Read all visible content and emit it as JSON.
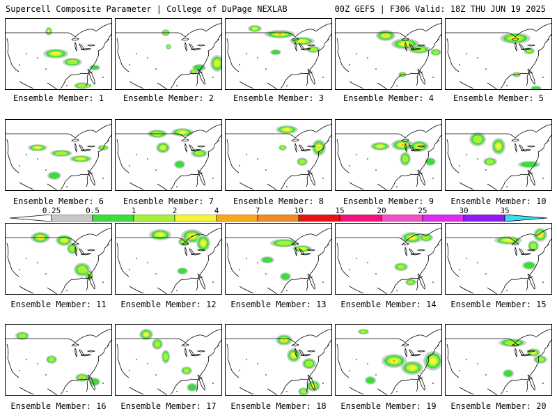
{
  "header": {
    "left": "Supercell Composite Parameter | College of DuPage NEXLAB",
    "right": "00Z GEFS | F306 Valid: 18Z THU JUN 19 2025"
  },
  "legend": {
    "ticks": [
      "0.25",
      "0.5",
      "1",
      "2",
      "4",
      "7",
      "10",
      "15",
      "20",
      "25",
      "30",
      "35"
    ],
    "colors": [
      "#c8c8c8",
      "#3ddc3d",
      "#a6f03a",
      "#f5f53c",
      "#f5a81e",
      "#f08c28",
      "#e61414",
      "#f01478",
      "#f050c8",
      "#dc2cf0",
      "#8c1cf0",
      "#b46ee6",
      "#3cdcf0"
    ]
  },
  "panels": [
    {
      "label": "Ensemble Member: 1"
    },
    {
      "label": "Ensemble Member: 2"
    },
    {
      "label": "Ensemble Member: 3"
    },
    {
      "label": "Ensemble Member: 4"
    },
    {
      "label": "Ensemble Member: 5"
    },
    {
      "label": "Ensemble Member: 6"
    },
    {
      "label": "Ensemble Member: 7"
    },
    {
      "label": "Ensemble Member: 8"
    },
    {
      "label": "Ensemble Member: 9"
    },
    {
      "label": "Ensemble Member: 10"
    },
    {
      "label": "Ensemble Member: 11"
    },
    {
      "label": "Ensemble Member: 12"
    },
    {
      "label": "Ensemble Member: 13"
    },
    {
      "label": "Ensemble Member: 14"
    },
    {
      "label": "Ensemble Member: 15"
    },
    {
      "label": "Ensemble Member: 16"
    },
    {
      "label": "Ensemble Member: 17"
    },
    {
      "label": "Ensemble Member: 18"
    },
    {
      "label": "Ensemble Member: 19"
    },
    {
      "label": "Ensemble Member: 20"
    }
  ]
}
